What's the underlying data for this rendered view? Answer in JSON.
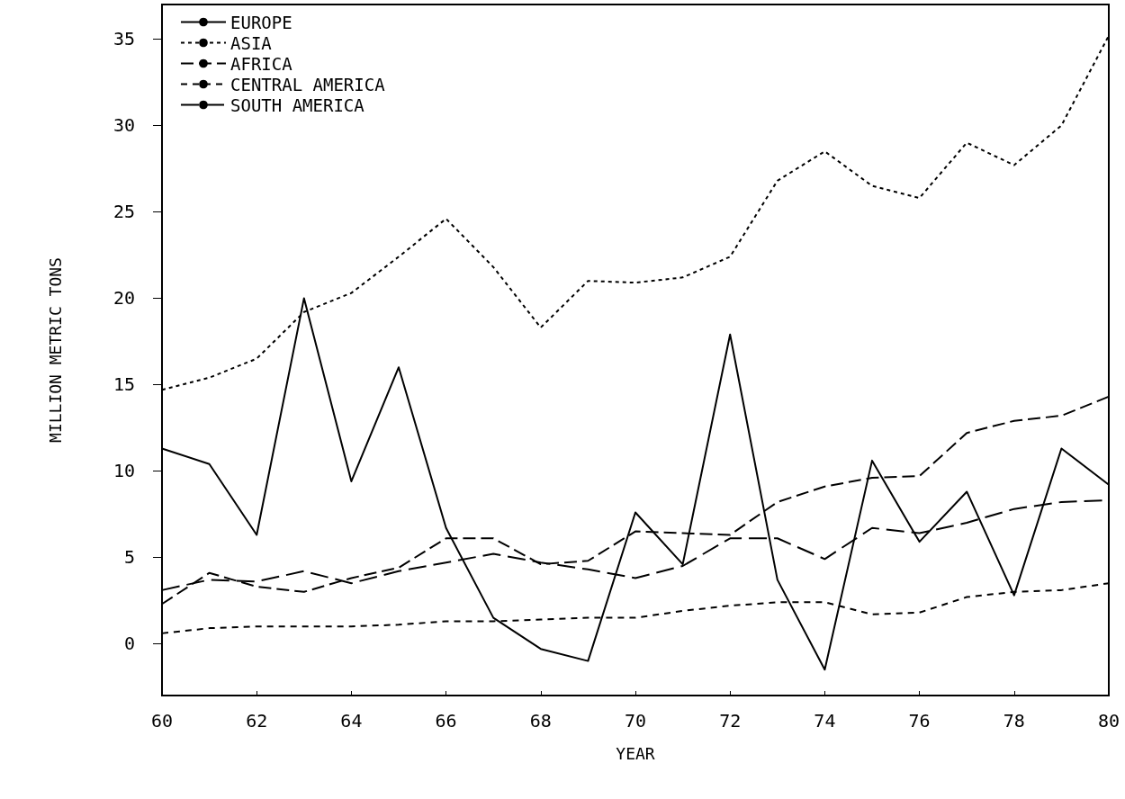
{
  "chart_data": {
    "type": "line",
    "xlabel": "YEAR",
    "ylabel": "MILLION METRIC TONS",
    "x": [
      60,
      61,
      62,
      63,
      64,
      65,
      66,
      67,
      68,
      69,
      70,
      71,
      72,
      73,
      74,
      75,
      76,
      77,
      78,
      79,
      80
    ],
    "series": [
      {
        "name": "EUROPE",
        "color": "#000000",
        "line_style": "solid",
        "values": [
          11.3,
          10.4,
          6.3,
          20.0,
          9.4,
          16.0,
          6.7,
          1.5,
          -0.3,
          -1.0,
          7.6,
          4.6,
          17.9,
          3.7,
          -1.5,
          10.6,
          5.9,
          8.8,
          2.8,
          11.3,
          9.2
        ]
      },
      {
        "name": "ASIA",
        "color": "#000000",
        "line_style": "dotted",
        "values": [
          14.7,
          15.4,
          16.5,
          19.2,
          20.3,
          22.4,
          24.6,
          21.8,
          18.3,
          21.0,
          20.9,
          21.2,
          22.4,
          26.8,
          28.5,
          26.5,
          25.8,
          29.0,
          27.7,
          30.0,
          35.2
        ]
      },
      {
        "name": "AFRICA",
        "color": "#000000",
        "line_style": "dashed",
        "values": [
          2.3,
          4.1,
          3.3,
          3.0,
          3.8,
          4.4,
          6.1,
          6.1,
          4.6,
          4.8,
          6.5,
          6.4,
          6.3,
          8.2,
          9.1,
          9.6,
          9.7,
          12.2,
          12.9,
          13.2,
          14.3
        ]
      },
      {
        "name": "CENTRAL AMERICA",
        "color": "#000000",
        "line_style": "dashed",
        "values": [
          0.6,
          0.9,
          1.0,
          1.0,
          1.0,
          1.1,
          1.3,
          1.3,
          1.4,
          1.5,
          1.5,
          1.9,
          2.2,
          2.4,
          2.4,
          1.7,
          1.8,
          2.7,
          3.0,
          3.1,
          3.5
        ]
      },
      {
        "name": "SOUTH AMERICA",
        "color": "#000000",
        "line_style": "dashed",
        "values": [
          3.1,
          3.7,
          3.6,
          4.2,
          3.5,
          4.2,
          4.7,
          5.2,
          4.7,
          4.3,
          3.8,
          4.5,
          6.1,
          6.1,
          4.9,
          6.7,
          6.4,
          7.0,
          7.8,
          8.2,
          8.3
        ]
      }
    ],
    "xlim": [
      60,
      80
    ],
    "xticks": [
      60,
      62,
      64,
      66,
      68,
      70,
      72,
      74,
      76,
      78,
      80
    ],
    "ylim": [
      -3,
      37
    ],
    "yticks": [
      0,
      5,
      10,
      15,
      20,
      25,
      30,
      35
    ],
    "grid": false,
    "legend": "top left",
    "marker": "none"
  }
}
